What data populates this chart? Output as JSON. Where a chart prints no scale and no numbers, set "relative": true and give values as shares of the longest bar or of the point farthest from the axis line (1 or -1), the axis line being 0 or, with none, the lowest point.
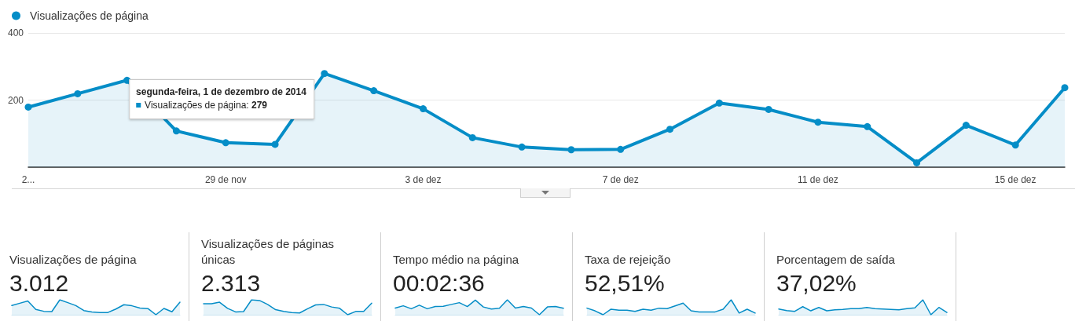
{
  "chart_data": [
    {
      "type": "area",
      "x": [
        "2014-11-25",
        "2014-11-26",
        "2014-11-27",
        "2014-11-28",
        "2014-11-29",
        "2014-11-30",
        "2014-12-01",
        "2014-12-02",
        "2014-12-03",
        "2014-12-04",
        "2014-12-05",
        "2014-12-06",
        "2014-12-07",
        "2014-12-08",
        "2014-12-09",
        "2014-12-10",
        "2014-12-11",
        "2014-12-12",
        "2014-12-13",
        "2014-12-14",
        "2014-12-15",
        "2014-12-16"
      ],
      "series": [
        {
          "name": "Visualizações de página",
          "color": "#058dc7",
          "values": [
            179,
            219,
            259,
            108,
            73,
            68,
            279,
            228,
            174,
            88,
            60,
            52,
            53,
            113,
            191,
            172,
            134,
            121,
            13,
            125,
            66,
            237
          ]
        }
      ],
      "xlim": [
        "2014-11-25",
        "2014-12-16"
      ],
      "xticks": [
        {
          "value": "2014-11-25",
          "label": "2..."
        },
        {
          "value": "2014-11-29",
          "label": "29 de nov"
        },
        {
          "value": "2014-12-03",
          "label": "3 de dez"
        },
        {
          "value": "2014-12-07",
          "label": "7 de dez"
        },
        {
          "value": "2014-12-11",
          "label": "11 de dez"
        },
        {
          "value": "2014-12-15",
          "label": "15 de dez"
        }
      ],
      "ylim": [
        0,
        400
      ],
      "yticks": [
        200,
        400
      ],
      "grid": "y",
      "legend": "top left",
      "marker": "circle",
      "annotations": [
        {
          "text": "segunda-feira, 1 de dezembro de 2014",
          "x": "2014-12-01",
          "y": 279
        },
        "Visualizações de página: 279"
      ]
    },
    {
      "type": "area",
      "title": "Visualizações de página",
      "annotations": [
        "3.012"
      ],
      "relative": true,
      "categories": [
        null,
        null,
        null,
        null,
        null,
        null,
        null,
        null,
        null,
        null,
        null,
        null,
        null,
        null,
        null,
        null,
        null,
        null,
        null,
        null,
        null,
        null
      ],
      "color": "#058dc7",
      "values": [
        0.62,
        0.77,
        0.92,
        0.36,
        0.23,
        0.21,
        1,
        0.81,
        0.61,
        0.28,
        0.18,
        0.15,
        0.15,
        0.38,
        0.67,
        0.6,
        0.45,
        0.41,
        0,
        0.42,
        0.2,
        0.84
      ]
    },
    {
      "type": "area",
      "title": "Visualizações de páginas únicas",
      "annotations": [
        "2.313"
      ],
      "relative": true,
      "categories": [
        null,
        null,
        null,
        null,
        null,
        null,
        null,
        null,
        null,
        null,
        null,
        null,
        null,
        null,
        null,
        null,
        null,
        null,
        null,
        null,
        null,
        null
      ],
      "color": "#058dc7",
      "values": [
        0.74,
        0.74,
        0.84,
        0.43,
        0.19,
        0.21,
        1,
        0.95,
        0.69,
        0.34,
        0.22,
        0.14,
        0.12,
        0.4,
        0.66,
        0.69,
        0.52,
        0.43,
        0,
        0.22,
        0.22,
        0.78
      ]
    },
    {
      "type": "area",
      "title": "Tempo médio na página",
      "annotations": [
        "00:02:36"
      ],
      "relative": true,
      "categories": [
        null,
        null,
        null,
        null,
        null,
        null,
        null,
        null,
        null,
        null,
        null,
        null,
        null,
        null,
        null,
        null,
        null,
        null,
        null,
        null,
        null,
        null
      ],
      "color": "#058dc7",
      "values": [
        0.45,
        0.6,
        0.4,
        0.64,
        0.4,
        0.55,
        0.57,
        0.69,
        0.81,
        0.55,
        0.98,
        0.52,
        0.38,
        0.43,
        1,
        0.45,
        0.55,
        0.45,
        0,
        0.52,
        0.55,
        0.43
      ]
    },
    {
      "type": "area",
      "title": "Taxa de rejeição",
      "annotations": [
        "52,51%"
      ],
      "relative": true,
      "categories": [
        null,
        null,
        null,
        null,
        null,
        null,
        null,
        null,
        null,
        null,
        null,
        null,
        null,
        null,
        null,
        null,
        null,
        null,
        null,
        null,
        null,
        null
      ],
      "color": "#058dc7",
      "values": [
        0.44,
        0.26,
        0,
        0.37,
        0.3,
        0.3,
        0.22,
        0.37,
        0.3,
        0.44,
        0.41,
        0.59,
        0.78,
        0.26,
        0.19,
        0.19,
        0.19,
        0.37,
        1,
        0.11,
        0.37,
        0.11
      ]
    },
    {
      "type": "area",
      "title": "Porcentagem de saída",
      "annotations": [
        "37,02%"
      ],
      "relative": true,
      "categories": [
        null,
        null,
        null,
        null,
        null,
        null,
        null,
        null,
        null,
        null,
        null,
        null,
        null,
        null,
        null,
        null,
        null,
        null,
        null,
        null,
        null,
        null
      ],
      "color": "#058dc7",
      "values": [
        0.38,
        0.28,
        0.23,
        0.54,
        0.26,
        0.49,
        0.26,
        0.33,
        0.36,
        0.41,
        0.41,
        0.49,
        0.41,
        0.38,
        0.36,
        0.33,
        0.41,
        0.46,
        1,
        0,
        0.49,
        0.15
      ]
    }
  ]
}
